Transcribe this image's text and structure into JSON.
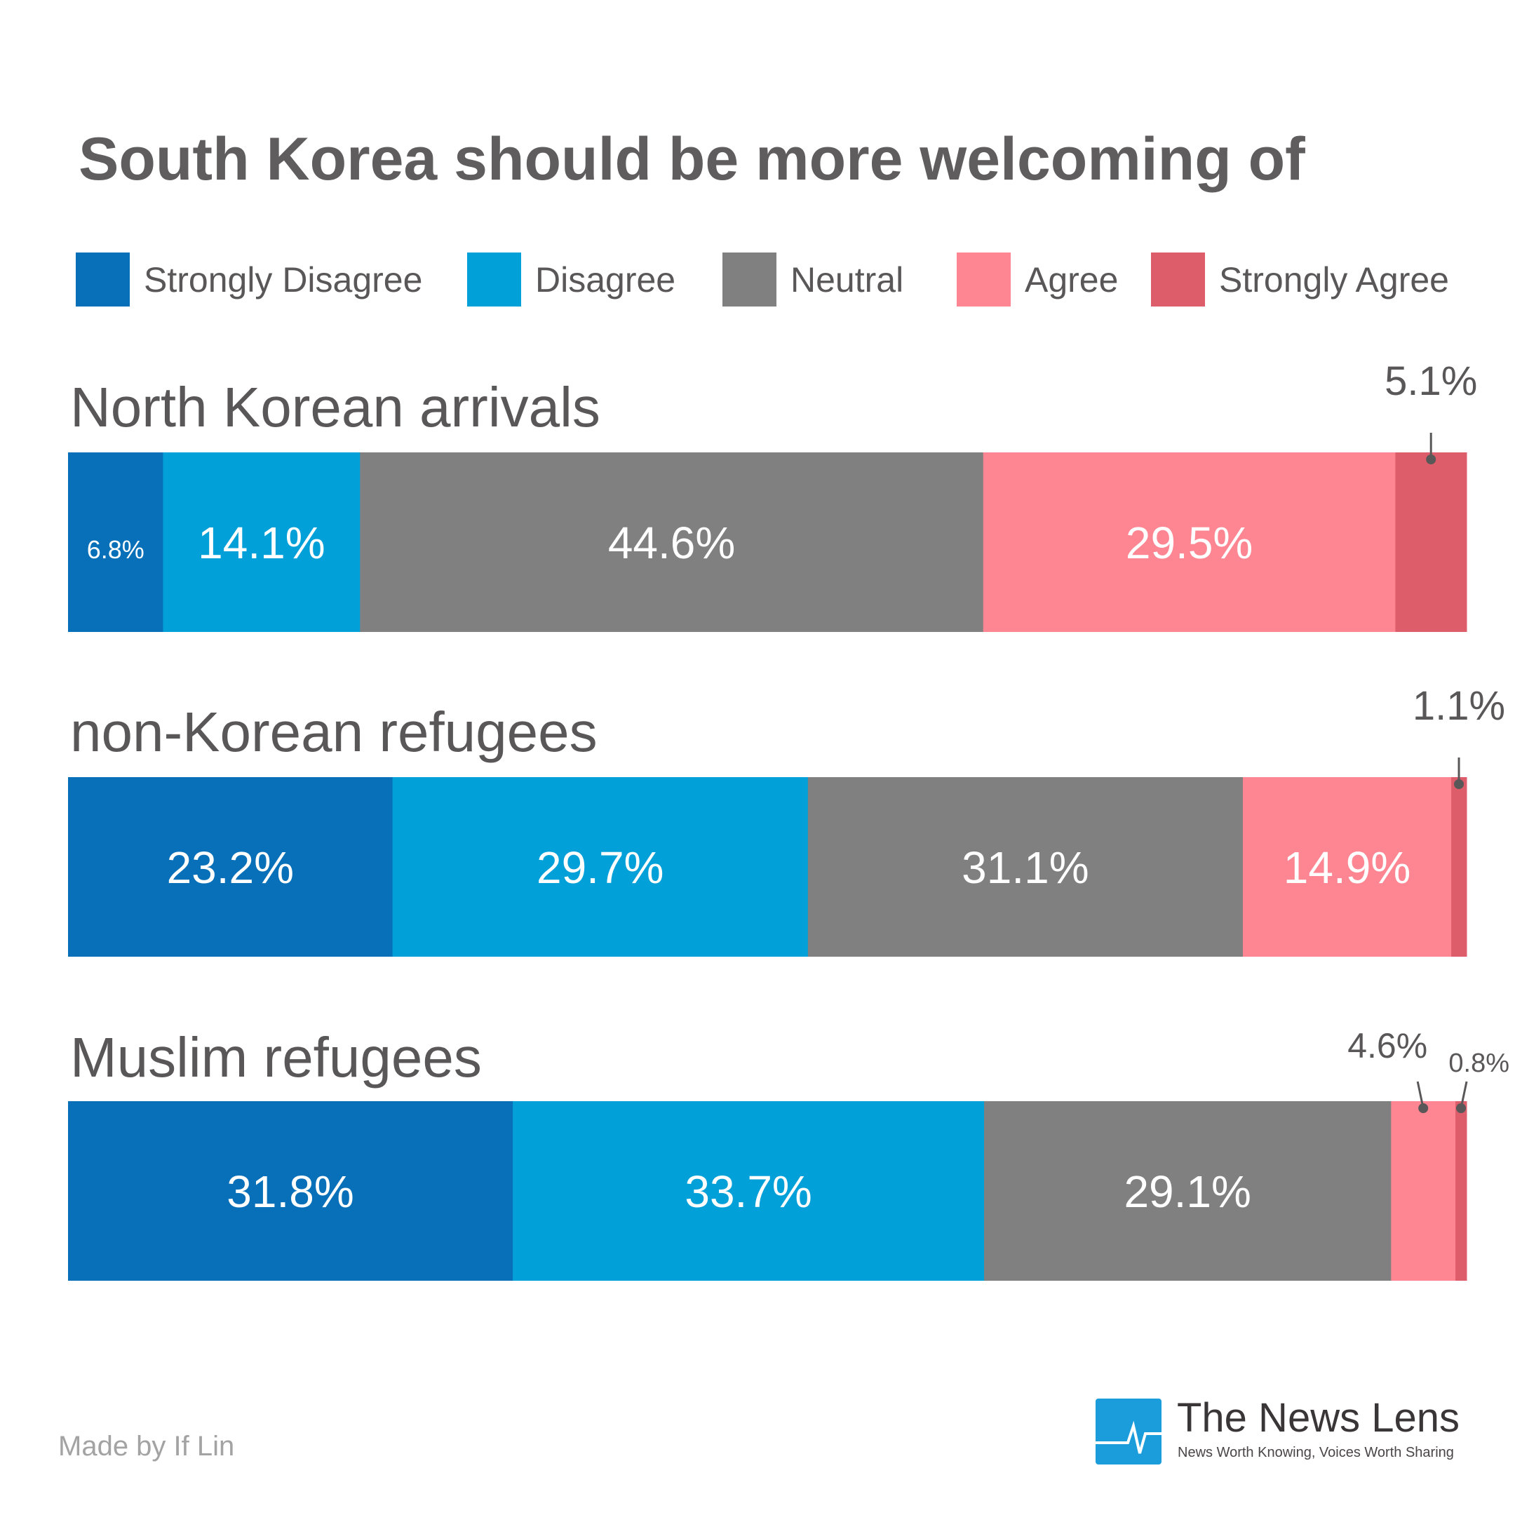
{
  "chart_data": {
    "type": "bar",
    "orientation": "horizontal-stacked-100",
    "title": "South Korea should be more welcoming of",
    "legend_position": "top",
    "series": [
      {
        "name": "Strongly Disagree",
        "color": "#0870b8"
      },
      {
        "name": "Disagree",
        "color": "#01a0d8"
      },
      {
        "name": "Neutral",
        "color": "#808080"
      },
      {
        "name": "Agree",
        "color": "#fe8592"
      },
      {
        "name": "Strongly Agree",
        "color": "#de5d6b"
      }
    ],
    "categories": [
      "North Korean arrivals",
      "non-Korean refugees",
      "Muslim refugees"
    ],
    "values": [
      [
        6.8,
        14.1,
        44.6,
        29.5,
        5.1
      ],
      [
        23.2,
        29.7,
        31.1,
        14.9,
        1.1
      ],
      [
        31.8,
        33.7,
        29.1,
        4.6,
        0.8
      ]
    ],
    "labels": [
      [
        "6.8%",
        "14.1%",
        "44.6%",
        "29.5%",
        "5.1%"
      ],
      [
        "23.2%",
        "29.7%",
        "31.1%",
        "14.9%",
        "1.1%"
      ],
      [
        "31.8%",
        "33.7%",
        "29.1%",
        "4.6%",
        "0.8%"
      ]
    ]
  },
  "footer": {
    "credit": "Made by If Lin",
    "logo_name": "The News Lens",
    "logo_tagline": "News Worth Knowing, Voices Worth Sharing",
    "logo_color": "#1b9ddb"
  }
}
